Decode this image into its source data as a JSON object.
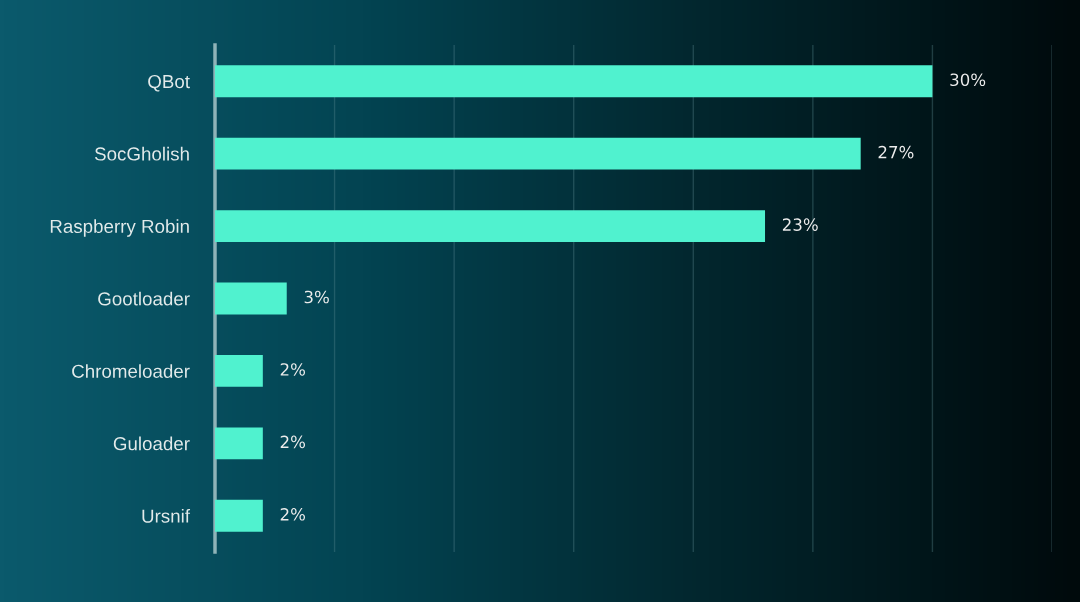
{
  "chart_data": {
    "type": "bar",
    "orientation": "horizontal",
    "categories": [
      "QBot",
      "SocGholish",
      "Raspberry Robin",
      "Gootloader",
      "Chromeloader",
      "Guloader",
      "Ursnif"
    ],
    "values": [
      30,
      27,
      23,
      3,
      2,
      2,
      2
    ],
    "value_labels": [
      "30%",
      "27%",
      "23%",
      "3%",
      "2%",
      "2%",
      "2%"
    ],
    "color": "#50f2cf",
    "xlim": [
      0,
      35
    ],
    "xticks": [
      {
        "value": 0,
        "label": null
      },
      {
        "value": 5,
        "label": null
      },
      {
        "value": 10,
        "label": null
      },
      {
        "value": 15,
        "label": null
      },
      {
        "value": 20,
        "label": null
      },
      {
        "value": 25,
        "label": null
      },
      {
        "value": 30,
        "label": null
      },
      {
        "value": 35,
        "label": null
      }
    ],
    "grid": "x",
    "tick_labels": "y"
  }
}
